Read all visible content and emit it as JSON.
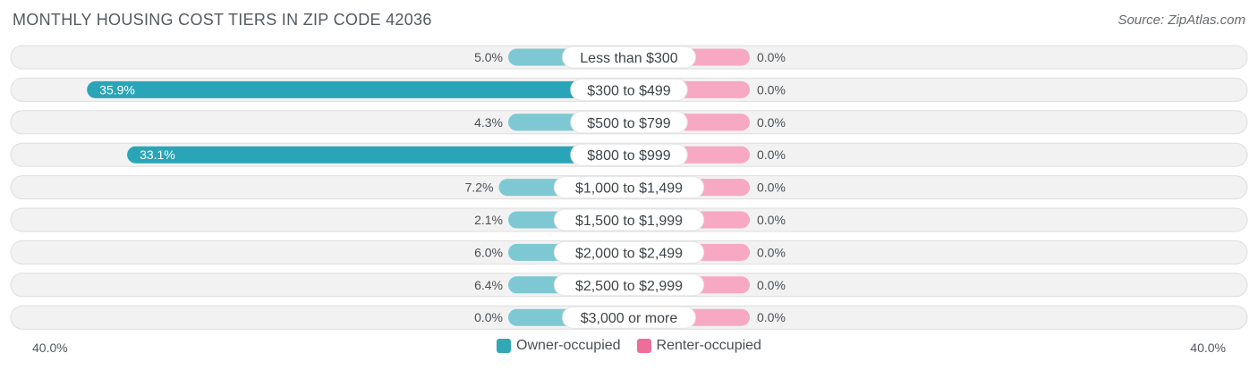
{
  "title": "MONTHLY HOUSING COST TIERS IN ZIP CODE 42036",
  "source": "Source: ZipAtlas.com",
  "colors": {
    "owner_dark": "#2aa5b8",
    "owner_light": "#7ec8d3",
    "renter": "#f7a8c3",
    "legend_owner": "#32a8b6",
    "legend_renter": "#ef6d99",
    "row_bg": "#f2f2f2",
    "row_border": "#dedede"
  },
  "legend": {
    "owner": "Owner-occupied",
    "renter": "Renter-occupied"
  },
  "axis": {
    "left_label": "40.0%",
    "right_label": "40.0%"
  },
  "chart_data": {
    "type": "bar",
    "orientation": "horizontal-diverging",
    "categories": [
      "Less than $300",
      "$300 to $499",
      "$500 to $799",
      "$800 to $999",
      "$1,000 to $1,499",
      "$1,500 to $1,999",
      "$2,000 to $2,499",
      "$2,500 to $2,999",
      "$3,000 or more"
    ],
    "series": [
      {
        "name": "Owner-occupied",
        "values": [
          5.0,
          35.9,
          4.3,
          33.1,
          7.2,
          2.1,
          6.0,
          6.4,
          0.0
        ],
        "labels": [
          "5.0%",
          "35.9%",
          "4.3%",
          "33.1%",
          "7.2%",
          "2.1%",
          "6.0%",
          "6.4%",
          "0.0%"
        ]
      },
      {
        "name": "Renter-occupied",
        "values": [
          0,
          0,
          0,
          0,
          0,
          0,
          0,
          0,
          0
        ],
        "labels": [
          "0.0%",
          "0.0%",
          "0.0%",
          "0.0%",
          "0.0%",
          "0.0%",
          "0.0%",
          "0.0%",
          "0.0%"
        ]
      }
    ],
    "xlim": [
      -40,
      40
    ],
    "legend_position": "bottom-center"
  }
}
